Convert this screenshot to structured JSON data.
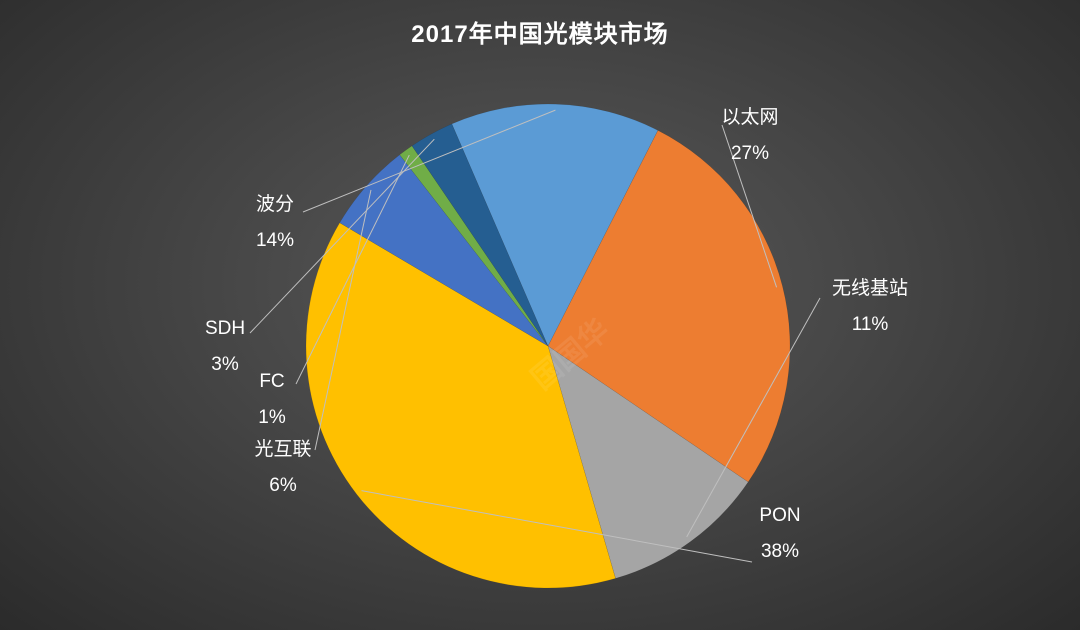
{
  "chart_data": {
    "type": "pie",
    "title": "2017年中国光模块市场",
    "slices": [
      {
        "label": "以太网",
        "value": 27,
        "value_label": "27%",
        "color": "#ED7D31"
      },
      {
        "label": "无线基站",
        "value": 11,
        "value_label": "11%",
        "color": "#A5A5A5"
      },
      {
        "label": "PON",
        "value": 38,
        "value_label": "38%",
        "color": "#FFC000"
      },
      {
        "label": "光互联",
        "value": 6,
        "value_label": "6%",
        "color": "#4472C4"
      },
      {
        "label": "FC",
        "value": 1,
        "value_label": "1%",
        "color": "#70AD47"
      },
      {
        "label": "SDH",
        "value": 3,
        "value_label": "3%",
        "color": "#255E91"
      },
      {
        "label": "波分",
        "value": 14,
        "value_label": "14%",
        "color": "#5B9BD5"
      }
    ]
  },
  "watermark_text": "国国华"
}
